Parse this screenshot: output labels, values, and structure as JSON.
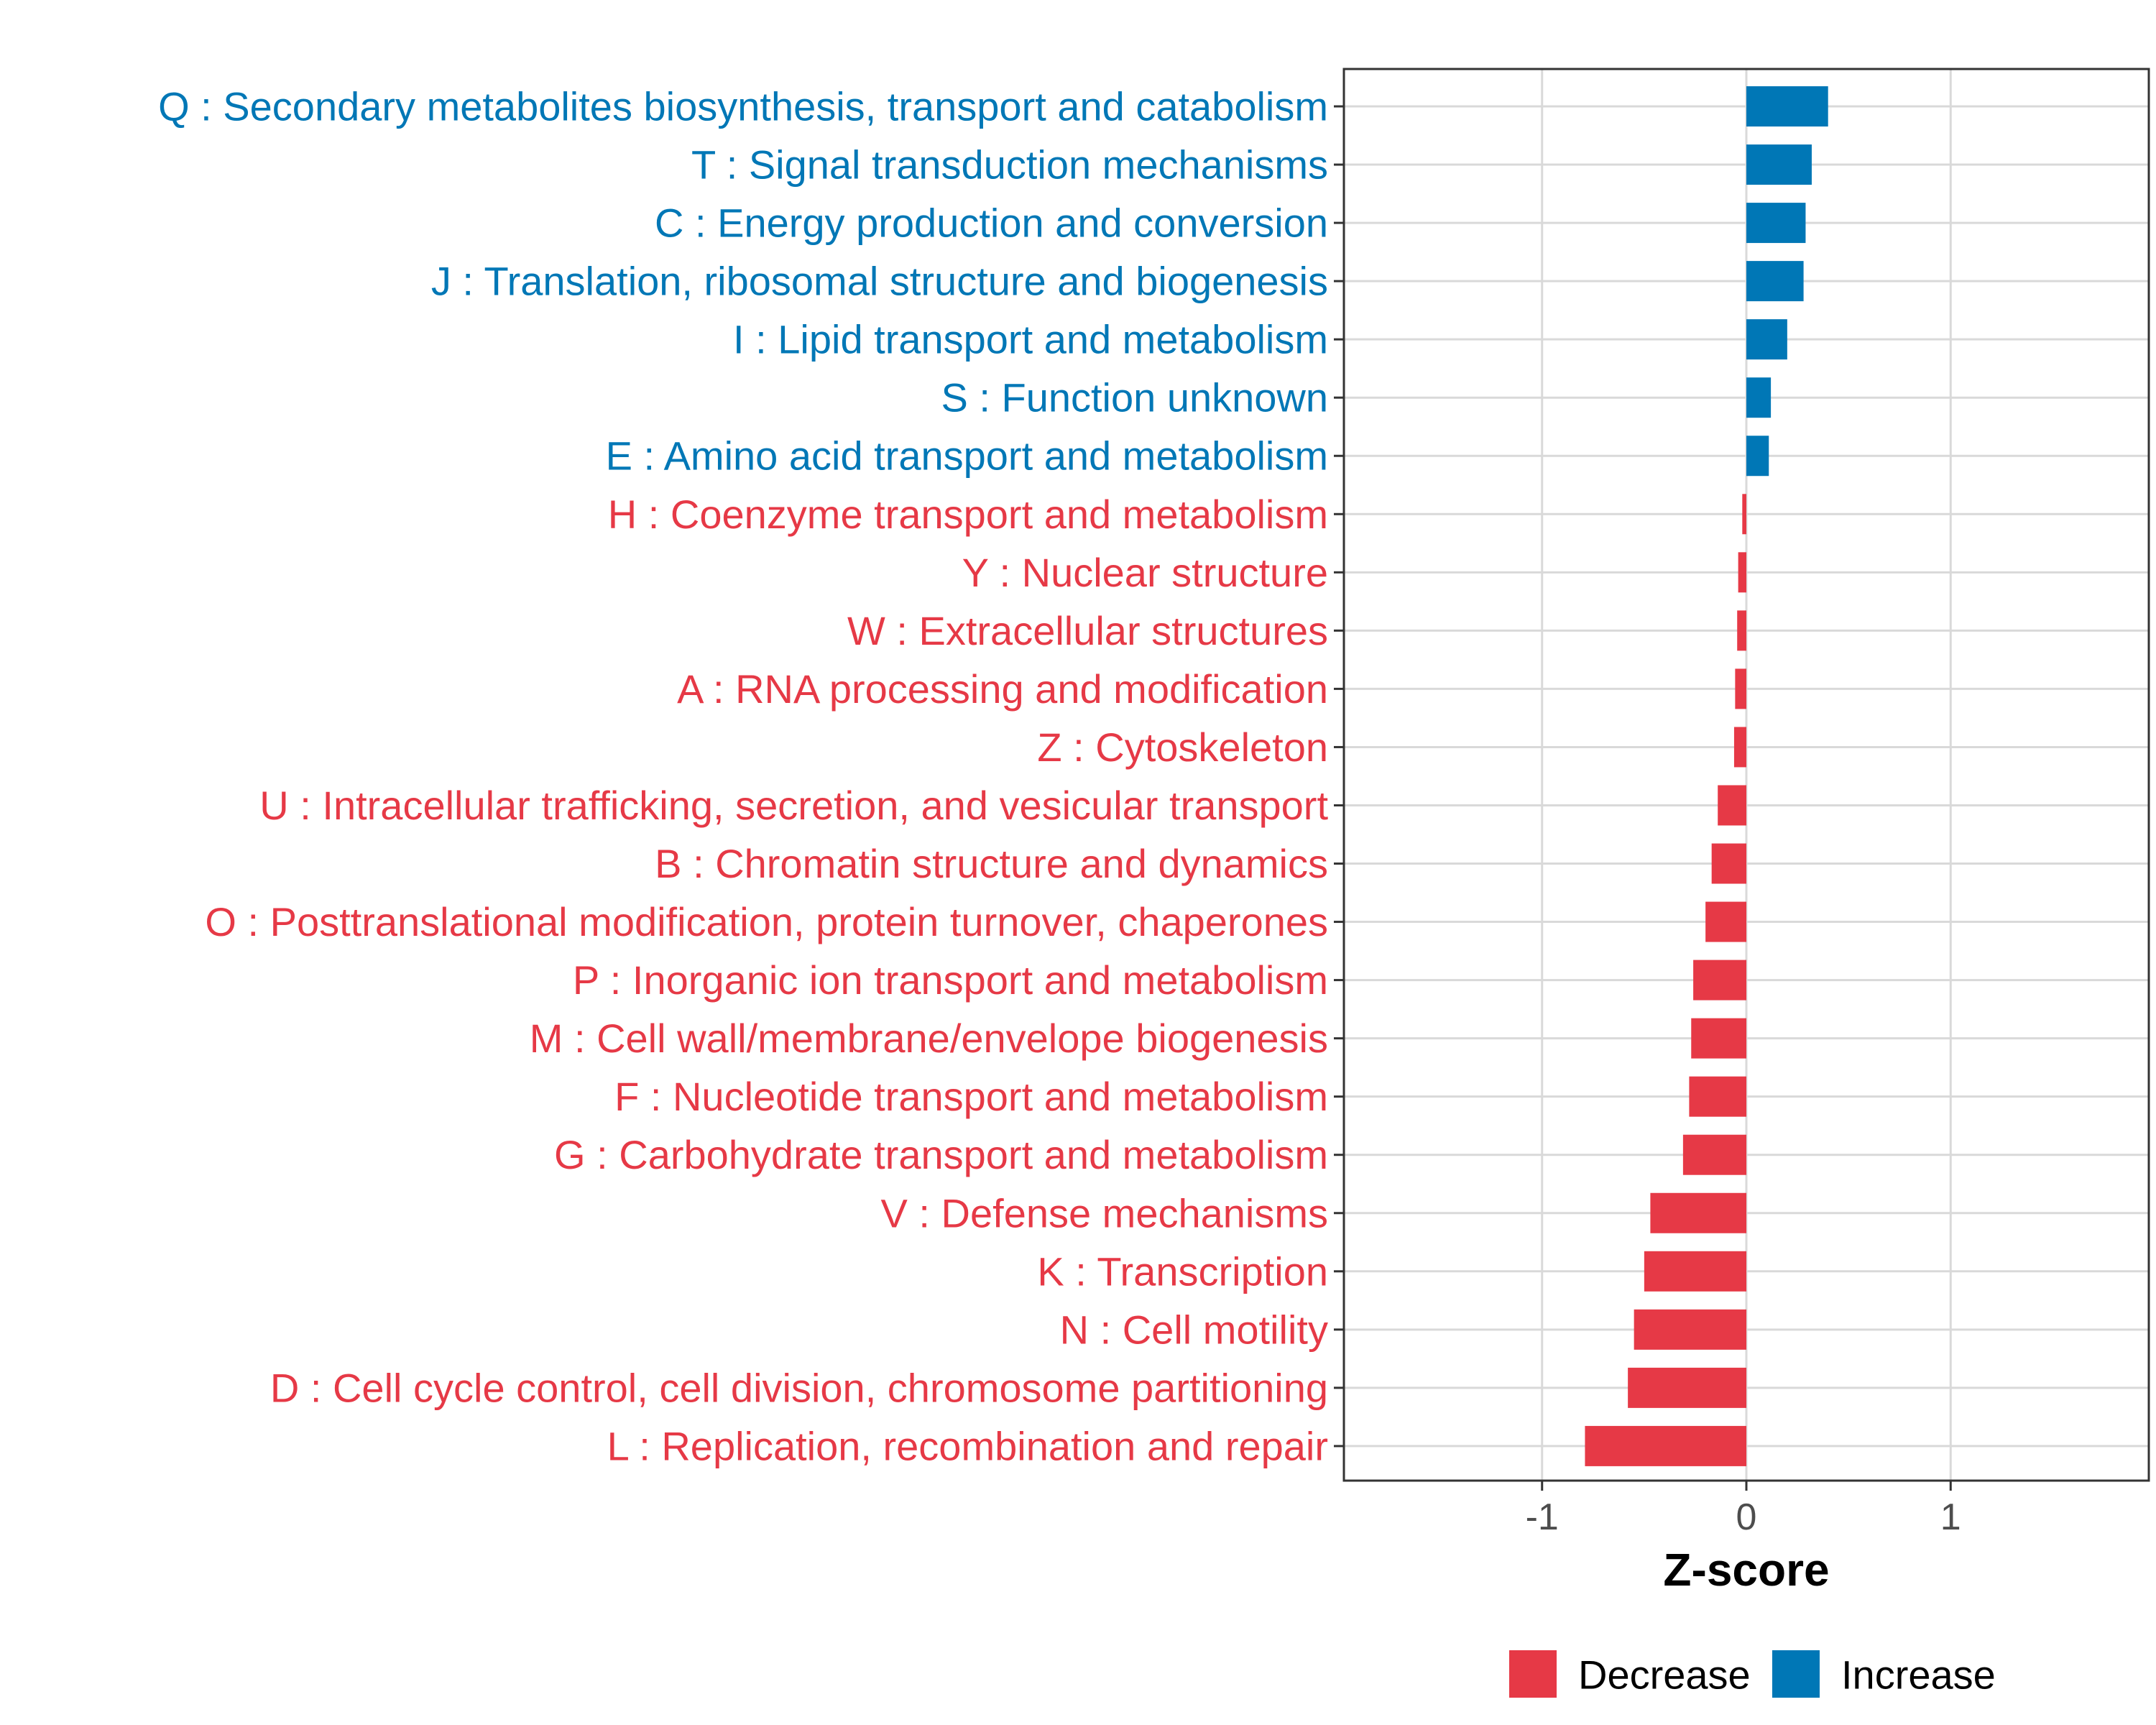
{
  "chart_data": {
    "type": "bar",
    "orientation": "horizontal",
    "xlabel": "Z-score",
    "ylabel": "",
    "xlim": [
      -1.97,
      1.97
    ],
    "xticks": [
      -1,
      0,
      1
    ],
    "xtick_labels": [
      "-1",
      "0",
      "1"
    ],
    "grid": true,
    "categories": [
      "Q : Secondary metabolites biosynthesis, transport and catabolism",
      "T : Signal transduction mechanisms",
      "C : Energy production and conversion",
      "J : Translation, ribosomal structure and biogenesis",
      "I : Lipid transport and metabolism",
      "S : Function unknown",
      "E : Amino acid transport and metabolism",
      "H : Coenzyme transport and metabolism",
      "Y : Nuclear structure",
      "W : Extracellular structures",
      "A : RNA processing and modification",
      "Z : Cytoskeleton",
      "U : Intracellular trafficking, secretion, and vesicular transport",
      "B : Chromatin structure and dynamics",
      "O : Posttranslational modification, protein turnover, chaperones",
      "P : Inorganic ion transport and metabolism",
      "M : Cell wall/membrane/envelope biogenesis",
      "F : Nucleotide transport and metabolism",
      "G : Carbohydrate transport and metabolism",
      "V : Defense mechanisms",
      "K : Transcription",
      "N : Cell motility",
      "D : Cell cycle control, cell division, chromosome partitioning",
      "L : Replication, recombination and repair"
    ],
    "values": [
      0.4,
      0.32,
      0.29,
      0.28,
      0.2,
      0.12,
      0.11,
      -0.02,
      -0.04,
      -0.045,
      -0.055,
      -0.06,
      -0.14,
      -0.17,
      -0.2,
      -0.26,
      -0.27,
      -0.28,
      -0.31,
      -0.47,
      -0.5,
      -0.55,
      -0.58,
      -0.79
    ],
    "legend": {
      "position": "bottom",
      "entries": [
        {
          "label": "Decrease",
          "color": "#e63946"
        },
        {
          "label": "Increase",
          "color": "#0077b6"
        }
      ]
    },
    "colors": {
      "decrease": "#e63946",
      "increase": "#0077b6"
    }
  }
}
